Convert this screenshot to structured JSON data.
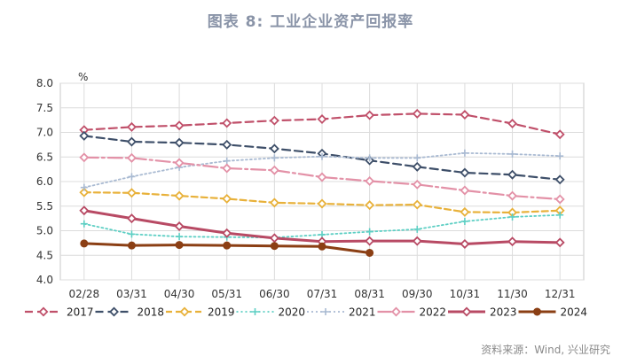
{
  "title": "图表 8:  工业企业资产回报率",
  "source": "资料来源：Wind, 兴业研究",
  "chart_data": {
    "type": "line",
    "unit": "%",
    "categories": [
      "02/28",
      "03/31",
      "04/30",
      "05/31",
      "06/30",
      "07/31",
      "08/31",
      "09/30",
      "10/31",
      "11/30",
      "12/31"
    ],
    "ylim": [
      4.0,
      8.0
    ],
    "yticks": [
      "8.0",
      "7.5",
      "7.0",
      "6.5",
      "6.0",
      "5.5",
      "5.0",
      "4.5",
      "4.0"
    ],
    "grid": true,
    "legend_position": "bottom",
    "series": [
      {
        "name": "2017",
        "color": "#c0506a",
        "dash": "9,5",
        "marker": "diamond",
        "width": 2.2,
        "values": [
          7.05,
          7.11,
          7.14,
          7.19,
          7.24,
          7.27,
          7.35,
          7.38,
          7.36,
          7.18,
          6.96
        ]
      },
      {
        "name": "2018",
        "color": "#3e4f69",
        "dash": "9,5",
        "marker": "diamond",
        "width": 2.2,
        "values": [
          6.93,
          6.81,
          6.79,
          6.75,
          6.67,
          6.57,
          6.43,
          6.3,
          6.18,
          6.14,
          6.04
        ]
      },
      {
        "name": "2019",
        "color": "#e8b13a",
        "dash": "7,4",
        "marker": "diamond",
        "width": 2.2,
        "values": [
          5.78,
          5.77,
          5.71,
          5.65,
          5.57,
          5.55,
          5.52,
          5.53,
          5.38,
          5.37,
          5.41
        ]
      },
      {
        "name": "2020",
        "color": "#5ecfc4",
        "dash": "2,3",
        "marker": "cross",
        "width": 1.8,
        "values": [
          5.14,
          4.93,
          4.88,
          4.87,
          4.86,
          4.92,
          4.98,
          5.03,
          5.19,
          5.28,
          5.32
        ]
      },
      {
        "name": "2021",
        "color": "#a9bad2",
        "dash": "2,3",
        "marker": "cross",
        "width": 1.8,
        "values": [
          5.88,
          6.1,
          6.29,
          6.42,
          6.48,
          6.51,
          6.48,
          6.48,
          6.58,
          6.56,
          6.52
        ]
      },
      {
        "name": "2022",
        "color": "#e391a7",
        "dash": "16,4,3,4",
        "marker": "diamond",
        "width": 2.2,
        "values": [
          6.49,
          6.48,
          6.38,
          6.27,
          6.23,
          6.09,
          6.01,
          5.94,
          5.82,
          5.71,
          5.64
        ]
      },
      {
        "name": "2023",
        "color": "#b84a64",
        "dash": "",
        "marker": "diamond",
        "width": 3,
        "values": [
          5.41,
          5.25,
          5.09,
          4.95,
          4.85,
          4.78,
          4.79,
          4.79,
          4.73,
          4.78,
          4.76
        ]
      },
      {
        "name": "2024",
        "color": "#8b3f14",
        "dash": "",
        "marker": "circle",
        "width": 3,
        "values": [
          4.74,
          4.7,
          4.71,
          4.7,
          4.69,
          4.68,
          4.55,
          null,
          null,
          null,
          null
        ]
      }
    ]
  }
}
